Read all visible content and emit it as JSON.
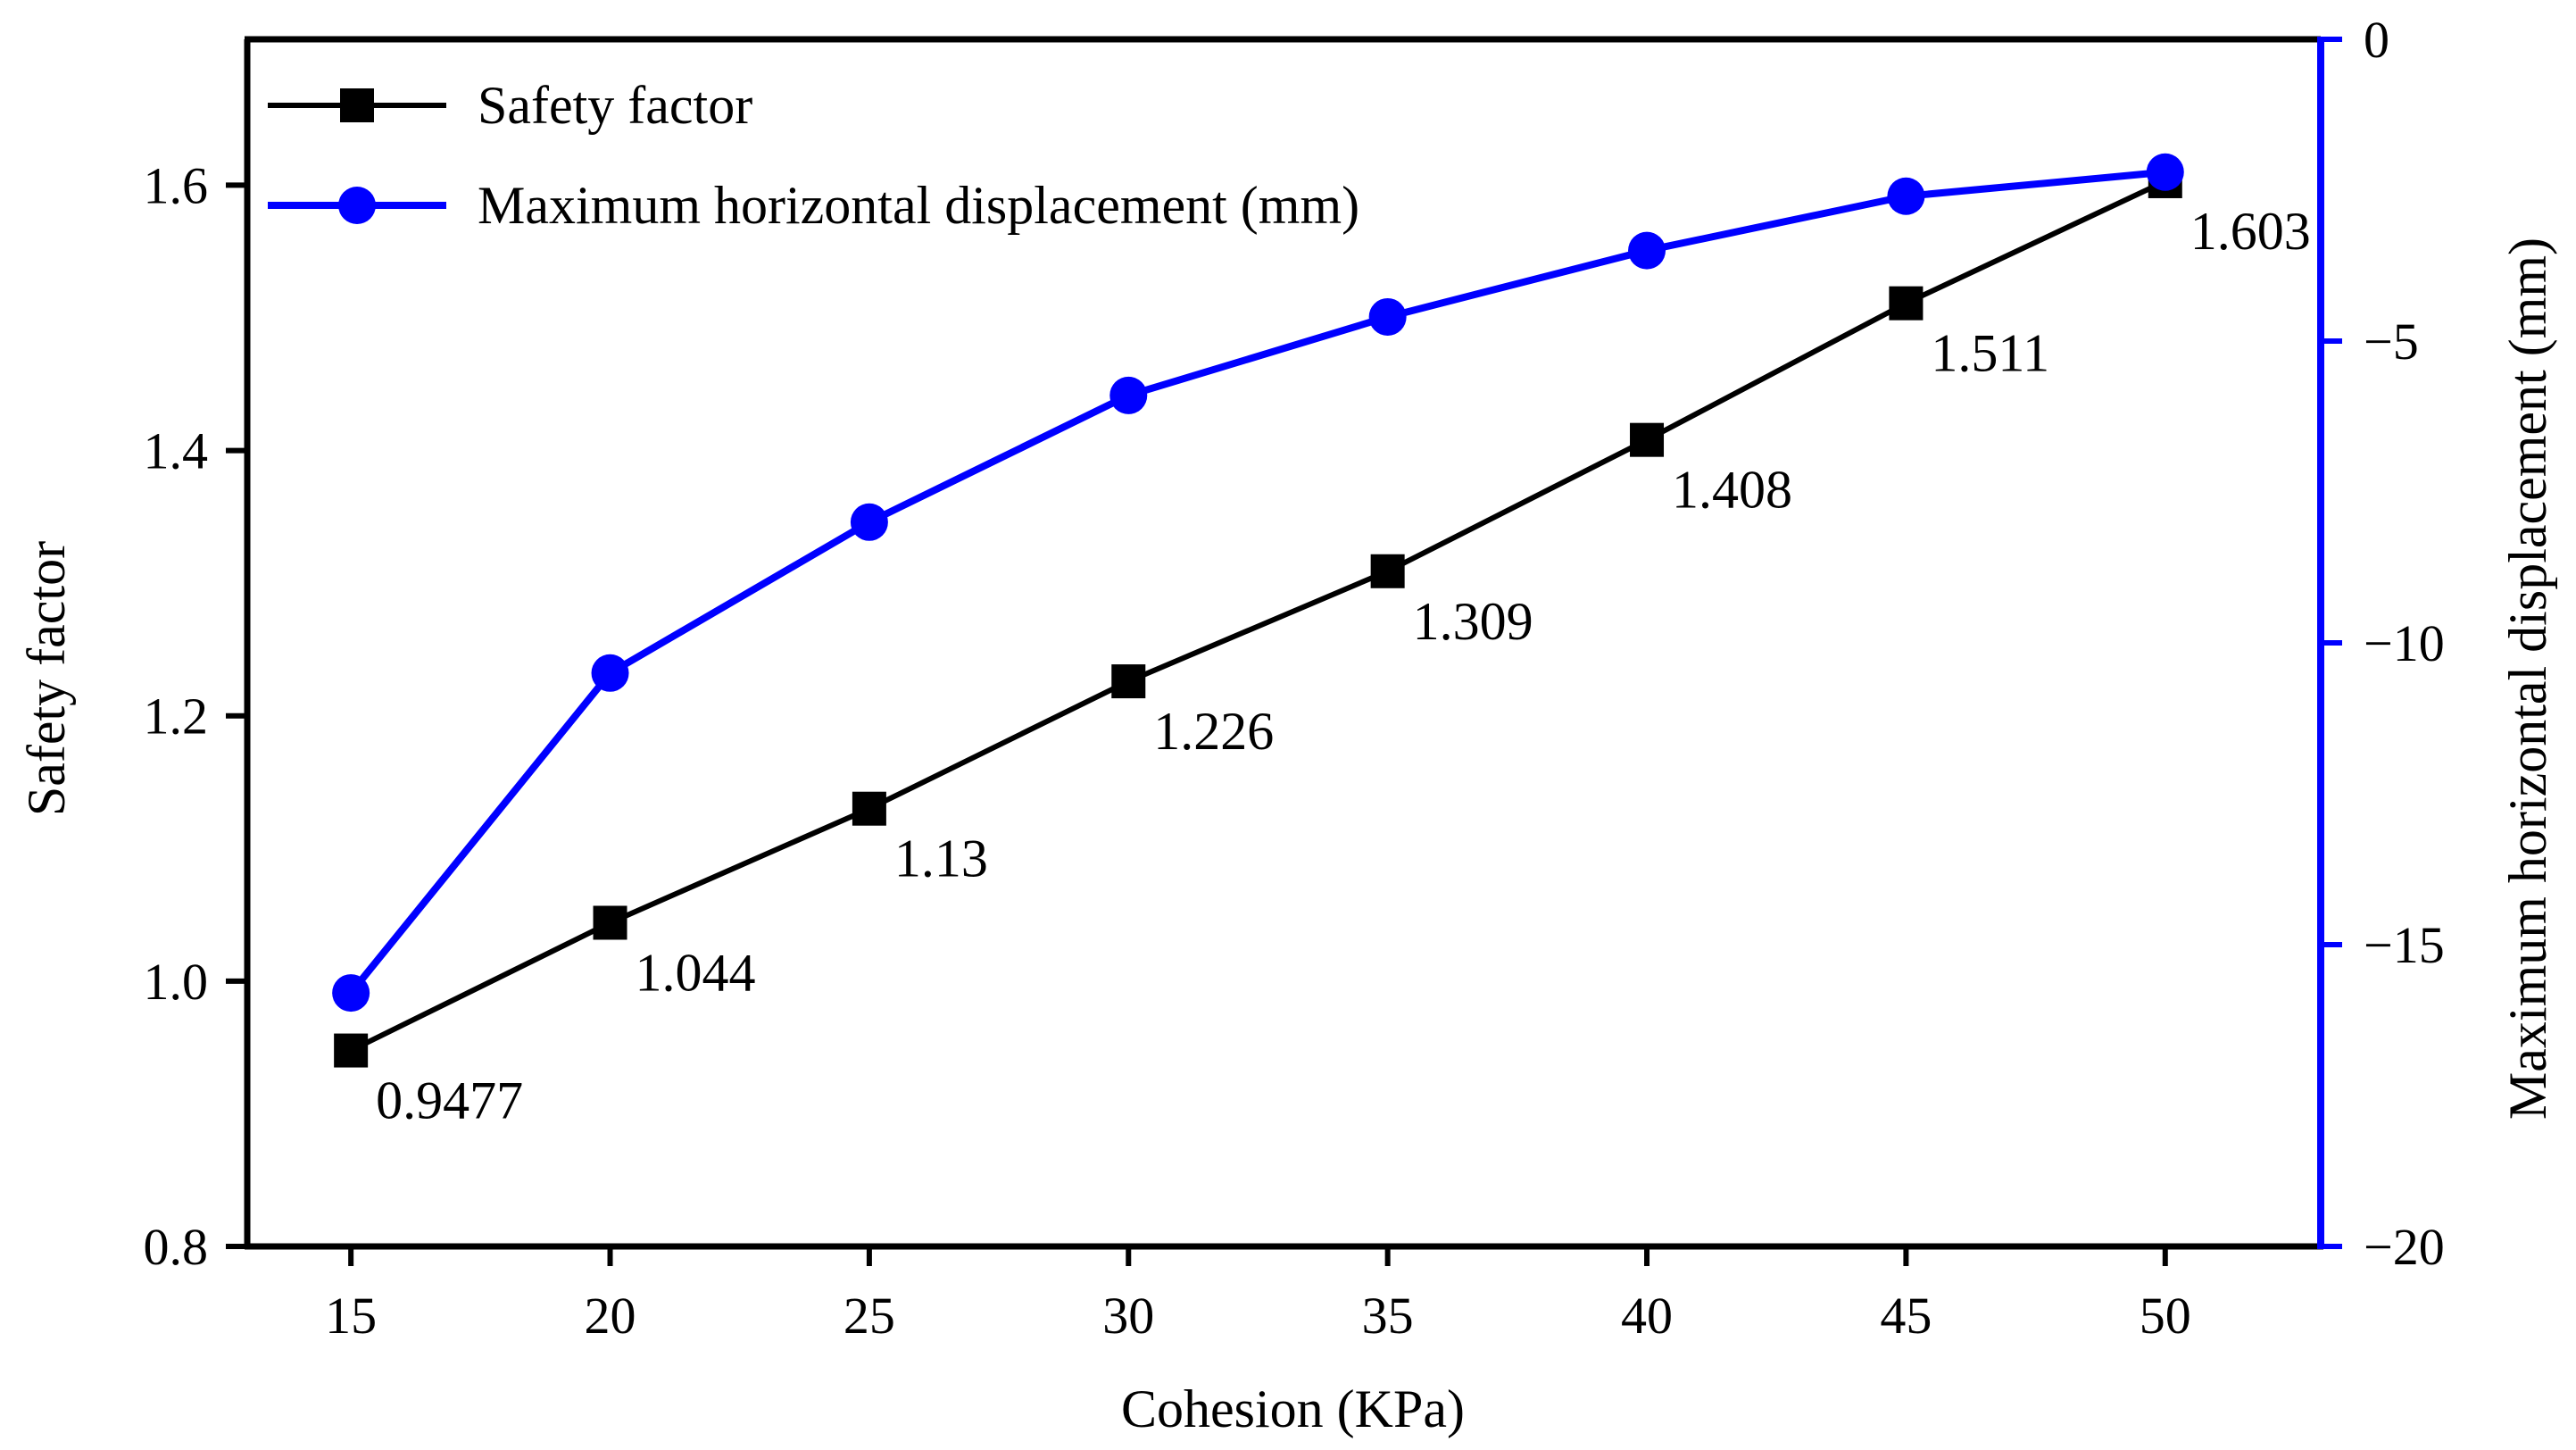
{
  "chart_data": {
    "type": "line",
    "x": [
      15,
      20,
      25,
      30,
      35,
      40,
      45,
      50
    ],
    "xlabel": "Cohesion (KPa)",
    "xlim": [
      13,
      53
    ],
    "xticks": [
      15,
      20,
      25,
      30,
      35,
      40,
      45,
      50
    ],
    "xtick_labels": [
      "15",
      "20",
      "25",
      "30",
      "35",
      "40",
      "45",
      "50"
    ],
    "ylabel": "Safety factor",
    "ylim": [
      0.8,
      1.71
    ],
    "yticks": [
      0.8,
      1.0,
      1.2,
      1.4,
      1.6
    ],
    "ytick_labels": [
      "0.8",
      "1.0",
      "1.2",
      "1.4",
      "1.6"
    ],
    "y2label": "Maximum horizontal displacement (mm)",
    "y2lim": [
      -20,
      0
    ],
    "y2ticks": [
      -20,
      -15,
      -10,
      -5,
      0
    ],
    "y2tick_labels": [
      "−20",
      "−15",
      "−10",
      "−5",
      "0"
    ],
    "legend_position": "top-left",
    "series": [
      {
        "name": "Safety factor",
        "axis": "left",
        "color": "#000000",
        "marker": "square",
        "values": [
          0.9477,
          1.044,
          1.13,
          1.226,
          1.309,
          1.408,
          1.511,
          1.603
        ],
        "data_labels": [
          "0.9477",
          "1.044",
          "1.13",
          "1.226",
          "1.309",
          "1.408",
          "1.511",
          "1.603"
        ]
      },
      {
        "name": "Maximum horizontal displacement (mm)",
        "axis": "right",
        "color": "#0000ff",
        "marker": "circle",
        "values": [
          -15.8,
          -10.5,
          -8.0,
          -5.9,
          -4.6,
          -3.5,
          -2.6,
          -2.2
        ]
      }
    ]
  }
}
